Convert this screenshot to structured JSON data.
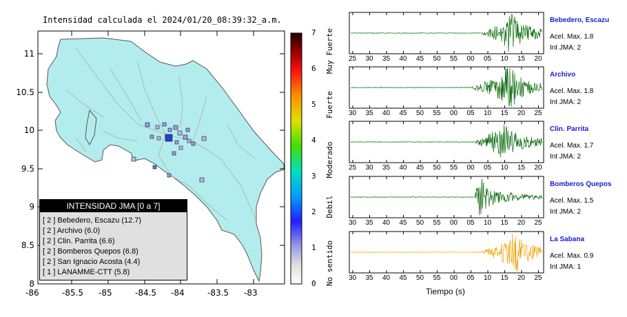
{
  "map": {
    "title": "Intensidad calculada el 2024/01/20_08:39:32_a.m.",
    "lat_ticks": [
      "11",
      "10.5",
      "10",
      "9.5",
      "9",
      "8.5",
      "8"
    ],
    "lon_ticks": [
      "-86",
      "-85.5",
      "-85",
      "-84.5",
      "-84",
      "-83.5",
      "-83"
    ],
    "legend": {
      "title": "INTENSIDAD JMA [0 a 7]",
      "rows": [
        "[ 2 ]  Bebedero, Escazu (12.7)",
        "[ 2 ]  Archivo (6.0)",
        "[ 2 ]  Clin. Parrita (6.6)",
        "[ 2 ]  Bomberos Quepos (6.8)",
        "[ 2 ]  San Ignacio Acosta (4.4)",
        "[ 1 ]  LANAMME-CTT (5.8)"
      ]
    }
  },
  "colorbar": {
    "ticks": [
      "7",
      "6",
      "5",
      "4",
      "3",
      "2",
      "1",
      "0"
    ],
    "labels": [
      "Muy Fuerte",
      "Fuerte",
      "Moderado",
      "Debil",
      "No sentido"
    ]
  },
  "traces": [
    {
      "name": "Bebedero, Escazu",
      "accel": "Acel. Max. 1.8",
      "int": "Int JMA: 2",
      "color": "#006400",
      "ticks": [
        "25",
        "30",
        "35",
        "40",
        "45",
        "50",
        "55",
        "00",
        "05",
        "10",
        "15",
        "20"
      ]
    },
    {
      "name": "Archivo",
      "accel": "Acel. Max. 1.8",
      "int": "Int JMA: 2",
      "color": "#006400",
      "ticks": [
        "30",
        "35",
        "40",
        "45",
        "50",
        "55",
        "00",
        "05",
        "10",
        "15",
        "20",
        "25"
      ]
    },
    {
      "name": "Clin. Parrita",
      "accel": "Acel. Max. 1.7",
      "int": "Int JMA: 2",
      "color": "#006400",
      "ticks": [
        "25",
        "30",
        "35",
        "40",
        "45",
        "50",
        "55",
        "00",
        "05",
        "10",
        "15",
        "20"
      ]
    },
    {
      "name": "Bomberos Quepos",
      "accel": "Acel. Max. 1.5",
      "int": "Int JMA: 2",
      "color": "#006400",
      "ticks": [
        "30",
        "35",
        "40",
        "45",
        "50",
        "55",
        "00",
        "05",
        "10",
        "15",
        "20",
        "25"
      ]
    },
    {
      "name": "La Sabana",
      "accel": "Acel. Max. 0.9",
      "int": "Int JMA: 1",
      "color": "#f0a000",
      "ticks": [
        "30",
        "35",
        "40",
        "45",
        "50",
        "55",
        "00",
        "05",
        "10",
        "15",
        "20",
        "25"
      ]
    }
  ],
  "time_axis_label": "Tiempo (s)",
  "colors": {
    "land": "#b3ecec",
    "station_marker": "#9a9af0",
    "epicenter": "#1f3fd8",
    "trace_green": "#006400",
    "trace_orange": "#f0a000"
  }
}
